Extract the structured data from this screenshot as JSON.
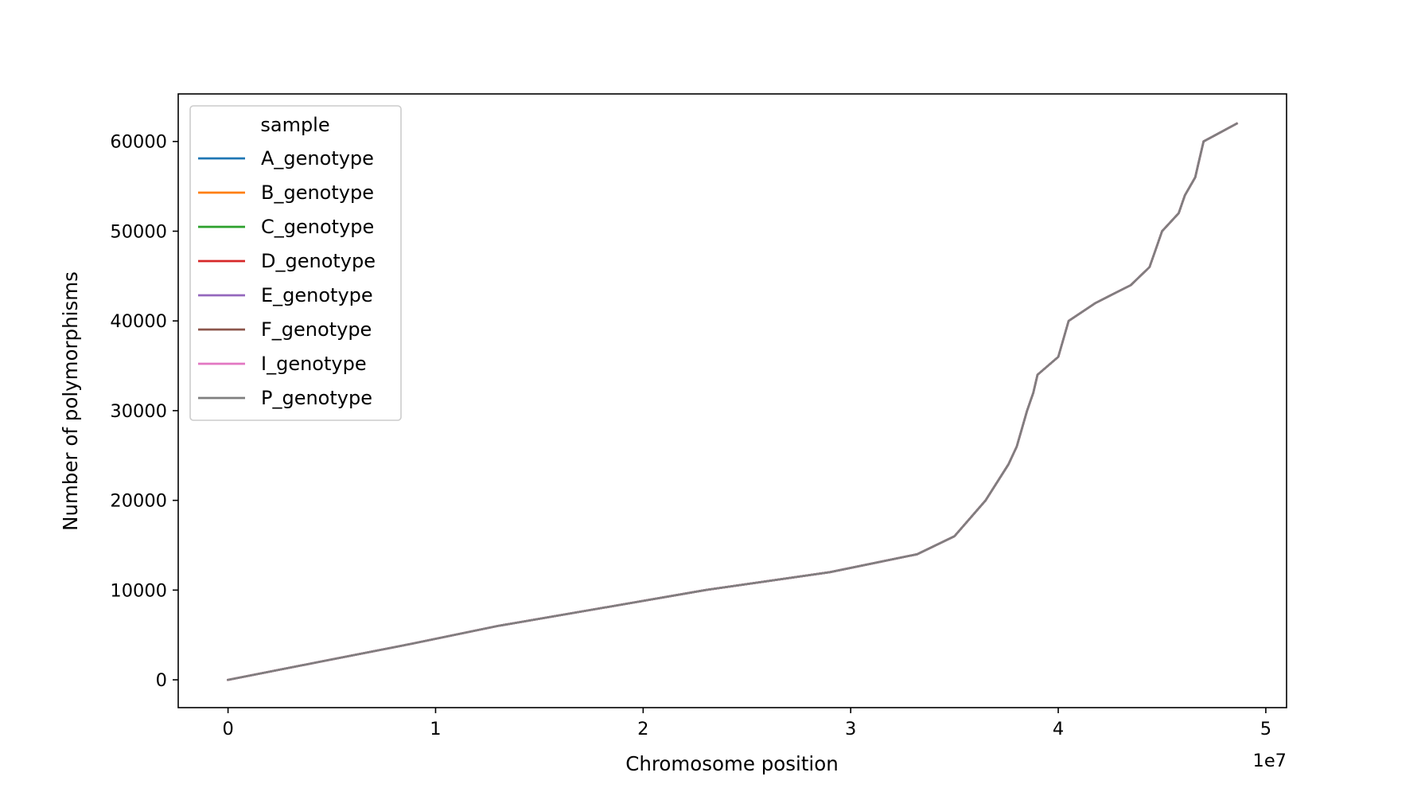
{
  "chart_data": {
    "type": "line",
    "title": "",
    "xlabel": "Chromosome position",
    "ylabel": "Number of polymorphisms",
    "x_offset_label": "1e7",
    "xlim": [
      -2400000,
      51000000
    ],
    "ylim": [
      -3100,
      65300
    ],
    "xticks": [
      0,
      10000000,
      20000000,
      30000000,
      40000000,
      50000000
    ],
    "xtick_labels": [
      "0",
      "1",
      "2",
      "3",
      "4",
      "5"
    ],
    "yticks": [
      0,
      10000,
      20000,
      30000,
      40000,
      50000,
      60000
    ],
    "ytick_labels": [
      "0",
      "10000",
      "20000",
      "30000",
      "40000",
      "50000",
      "60000"
    ],
    "grid": false,
    "legend": {
      "title": "sample",
      "placement": "upper left",
      "entries": [
        "A_genotype",
        "B_genotype",
        "C_genotype",
        "D_genotype",
        "E_genotype",
        "F_genotype",
        "I_genotype",
        "P_genotype"
      ]
    },
    "series": [
      {
        "name": "A_genotype",
        "color": "#1f77b4",
        "ref": 0
      },
      {
        "name": "B_genotype",
        "color": "#ff7f0e",
        "ref": 0
      },
      {
        "name": "C_genotype",
        "color": "#2ca02c",
        "ref": 0
      },
      {
        "name": "D_genotype",
        "color": "#d62728",
        "ref": 0
      },
      {
        "name": "E_genotype",
        "color": "#9467bd",
        "ref": 0
      },
      {
        "name": "F_genotype",
        "color": "#8c564b",
        "ref": 0
      },
      {
        "name": "I_genotype",
        "color": "#e377c2",
        "ref": 0
      },
      {
        "name": "P_genotype",
        "color": "#7f7f7f",
        "ref": 0
      }
    ],
    "shared_curve": {
      "x": [
        0,
        4400000,
        8800000,
        13000000,
        18000000,
        23000000,
        29000000,
        33200000,
        35000000,
        36500000,
        37600000,
        38000000,
        38500000,
        38800000,
        39000000,
        40000000,
        40500000,
        41800000,
        43500000,
        44400000,
        44700000,
        45000000,
        45800000,
        46100000,
        46600000,
        46800000,
        47000000,
        48600000
      ],
      "y": [
        0,
        2000,
        4000,
        6000,
        8000,
        10000,
        12000,
        14000,
        16000,
        20000,
        24000,
        26000,
        30000,
        32000,
        34000,
        36000,
        40000,
        42000,
        44000,
        46000,
        48000,
        50000,
        52000,
        54000,
        56000,
        58000,
        60000,
        62000
      ]
    }
  }
}
